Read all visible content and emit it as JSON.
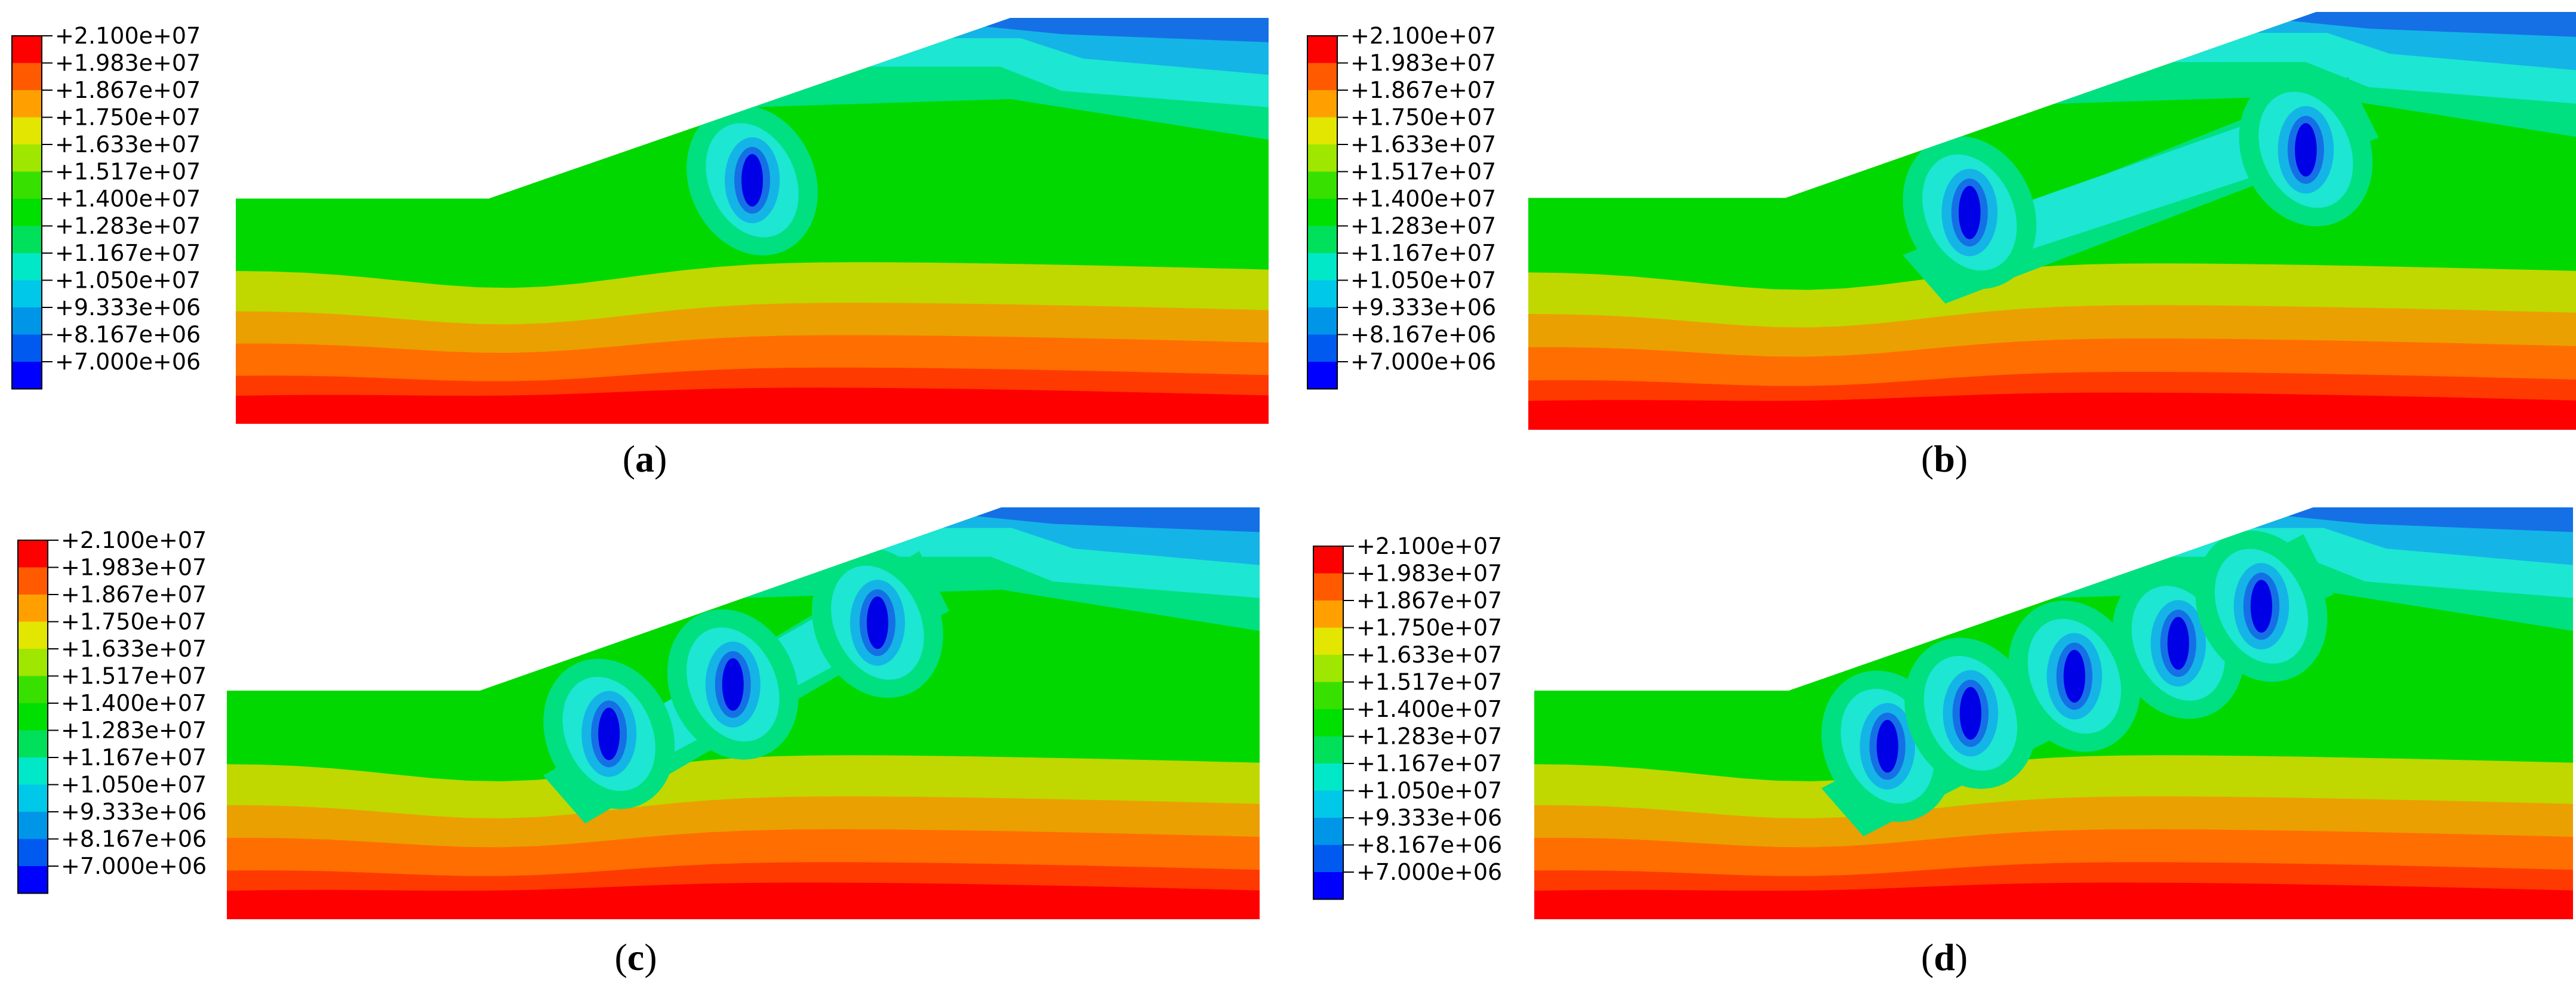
{
  "legend": {
    "labels": [
      "+2.100e+07",
      "+1.983e+07",
      "+1.867e+07",
      "+1.750e+07",
      "+1.633e+07",
      "+1.517e+07",
      "+1.400e+07",
      "+1.283e+07",
      "+1.167e+07",
      "+1.050e+07",
      "+9.333e+06",
      "+8.167e+06",
      "+7.000e+06"
    ],
    "colors": [
      "#ff0000",
      "#ff5a00",
      "#ffa000",
      "#e2e600",
      "#9fe600",
      "#38e000",
      "#00e000",
      "#00e05a",
      "#00e8c8",
      "#00c8e8",
      "#0096e8",
      "#005af0",
      "#0000ff"
    ]
  },
  "panels": [
    {
      "id": "a",
      "open": "(",
      "letter": "a",
      "close": ")"
    },
    {
      "id": "b",
      "open": "(",
      "letter": "b",
      "close": ")"
    },
    {
      "id": "c",
      "open": "(",
      "letter": "c",
      "close": ")"
    },
    {
      "id": "d",
      "open": "(",
      "letter": "d",
      "close": ")"
    }
  ],
  "field_colors": {
    "red": "#ff0000",
    "red_orange": "#ff3a00",
    "orange": "#ff6e00",
    "amber": "#eaa000",
    "yellow_green": "#c0d800",
    "green": "#00d800",
    "green_teal": "#00e080",
    "teal": "#1de6d2",
    "cyan_blue": "#15b4e6",
    "blue_mid": "#1570e6",
    "blue_dark": "#0000e6"
  }
}
